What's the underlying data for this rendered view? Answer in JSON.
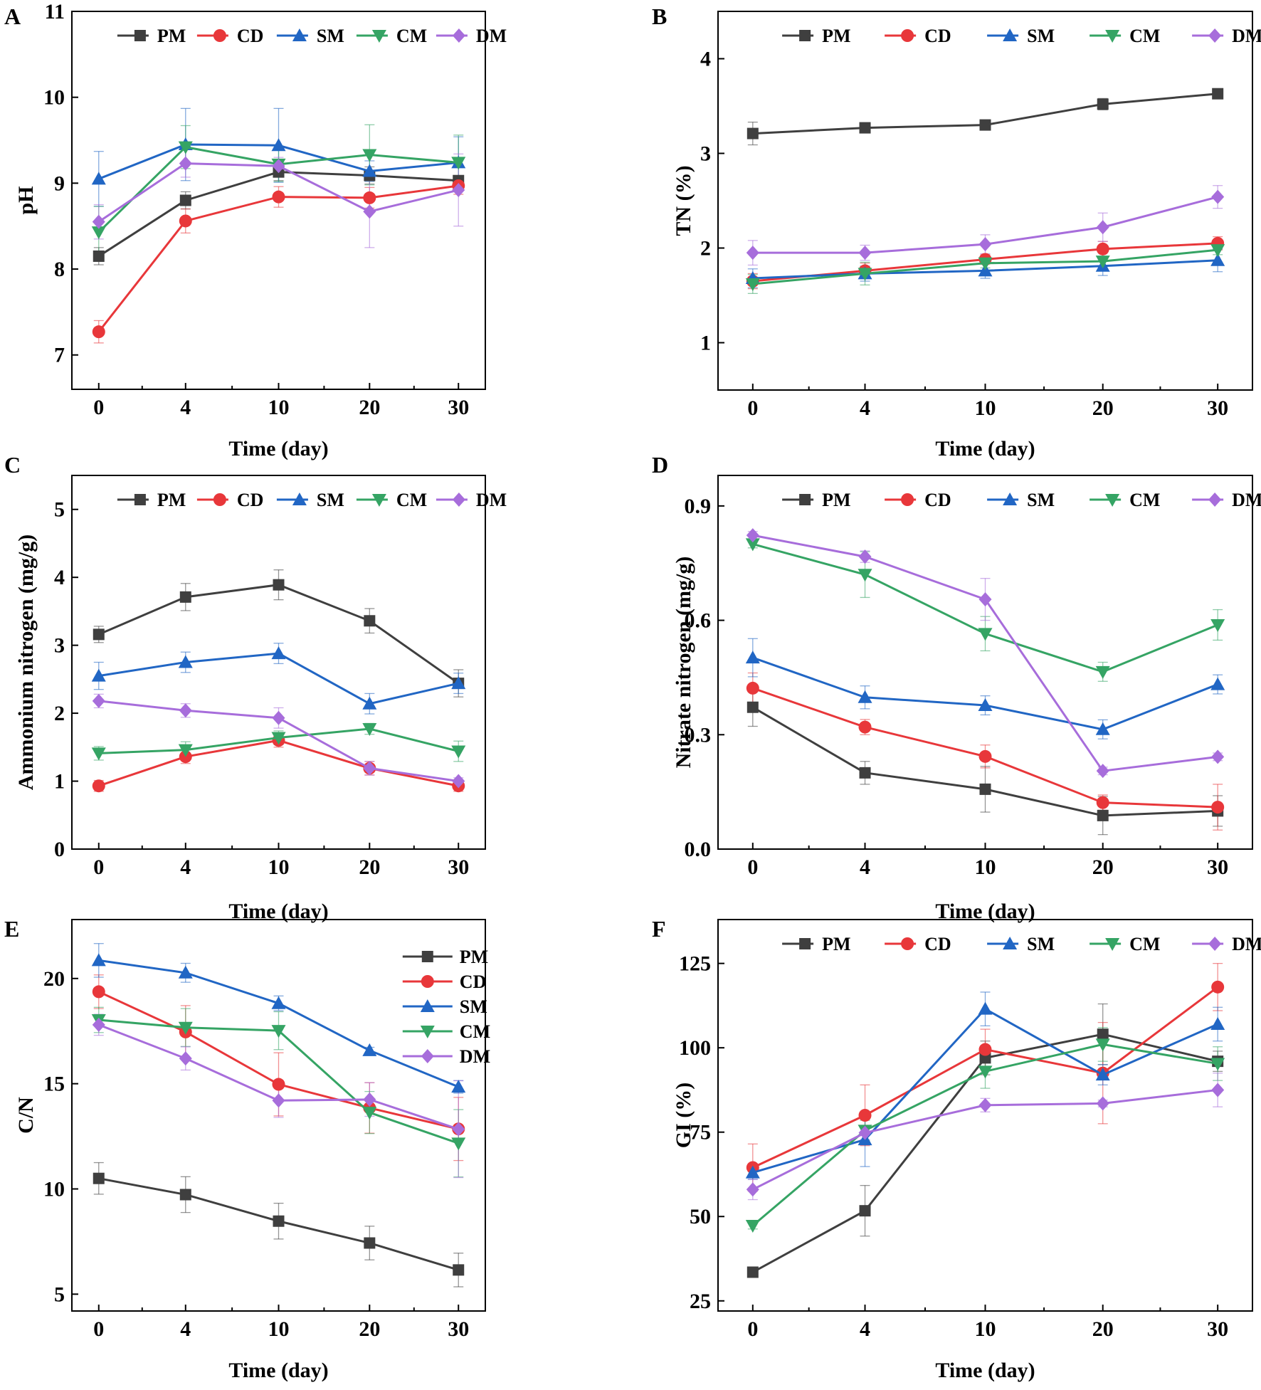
{
  "figure": {
    "series_colors": {
      "PM": "#3f3f3f",
      "CD": "#e8373a",
      "SM": "#2166c4",
      "CM": "#35a464",
      "DM": "#a76ddb"
    },
    "series_markers": {
      "PM": "square",
      "CD": "circle",
      "SM": "triangle-up",
      "CM": "triangle-down",
      "DM": "diamond"
    }
  },
  "chart_data": [
    {
      "id": "A",
      "letter": "A",
      "type": "line",
      "title": "",
      "xlabel": "Time (day)",
      "ylabel": "pH",
      "categories": [
        "0",
        "4",
        "10",
        "20",
        "30"
      ],
      "ylim": [
        6.6,
        11
      ],
      "yticks": [
        7,
        8,
        9,
        10,
        11
      ],
      "ytick_labels": [
        "7",
        "8",
        "9",
        "10",
        "11"
      ],
      "legend": "top-row",
      "series": [
        {
          "name": "PM",
          "values": [
            8.15,
            8.8,
            9.13,
            9.09,
            9.03
          ],
          "errors": [
            0.1,
            0.1,
            0.1,
            0.1,
            0.05
          ]
        },
        {
          "name": "CD",
          "values": [
            7.27,
            8.56,
            8.84,
            8.83,
            8.97
          ],
          "errors": [
            0.13,
            0.14,
            0.12,
            0.12,
            0.1
          ]
        },
        {
          "name": "SM",
          "values": [
            9.05,
            9.45,
            9.44,
            9.14,
            9.24
          ],
          "errors": [
            0.32,
            0.42,
            0.43,
            0.12,
            0.3
          ]
        },
        {
          "name": "CM",
          "values": [
            8.43,
            9.42,
            9.22,
            9.33,
            9.24
          ],
          "errors": [
            0.3,
            0.25,
            0.2,
            0.35,
            0.32
          ]
        },
        {
          "name": "DM",
          "values": [
            8.55,
            9.23,
            9.2,
            8.67,
            8.92
          ],
          "errors": [
            0.2,
            0.16,
            0.1,
            0.42,
            0.42
          ]
        }
      ]
    },
    {
      "id": "B",
      "letter": "B",
      "type": "line",
      "title": "",
      "xlabel": "Time (day)",
      "ylabel": "TN (%)",
      "categories": [
        "0",
        "4",
        "10",
        "20",
        "30"
      ],
      "ylim": [
        0.5,
        4.5
      ],
      "yticks": [
        1,
        2,
        3,
        4
      ],
      "ytick_labels": [
        "1",
        "2",
        "3",
        "4"
      ],
      "legend": "top-row",
      "series": [
        {
          "name": "PM",
          "values": [
            3.21,
            3.27,
            3.3,
            3.52,
            3.63
          ],
          "errors": [
            0.12,
            0.03,
            0.04,
            0.06,
            0.03
          ]
        },
        {
          "name": "CD",
          "values": [
            1.65,
            1.76,
            1.88,
            1.99,
            2.05
          ],
          "errors": [
            0.08,
            0.08,
            0.05,
            0.08,
            0.07
          ]
        },
        {
          "name": "SM",
          "values": [
            1.68,
            1.73,
            1.76,
            1.81,
            1.87
          ],
          "errors": [
            0.1,
            0.08,
            0.08,
            0.1,
            0.12
          ]
        },
        {
          "name": "CM",
          "values": [
            1.62,
            1.73,
            1.84,
            1.86,
            1.98
          ],
          "errors": [
            0.1,
            0.12,
            0.05,
            0.05,
            0.05
          ]
        },
        {
          "name": "DM",
          "values": [
            1.95,
            1.95,
            2.04,
            2.22,
            2.54
          ],
          "errors": [
            0.13,
            0.08,
            0.1,
            0.15,
            0.12
          ]
        }
      ]
    },
    {
      "id": "C",
      "letter": "C",
      "type": "line",
      "title": "",
      "xlabel": "Time (day)",
      "ylabel": "Ammonium nitrogen (mg/g)",
      "categories": [
        "0",
        "4",
        "10",
        "20",
        "30"
      ],
      "ylim": [
        0,
        5.5
      ],
      "yticks": [
        0,
        1,
        2,
        3,
        4,
        5
      ],
      "ytick_labels": [
        "0",
        "1",
        "2",
        "3",
        "4",
        "5"
      ],
      "legend": "top-row",
      "series": [
        {
          "name": "PM",
          "values": [
            3.16,
            3.71,
            3.89,
            3.36,
            2.44
          ],
          "errors": [
            0.12,
            0.2,
            0.22,
            0.18,
            0.2
          ]
        },
        {
          "name": "CD",
          "values": [
            0.93,
            1.36,
            1.6,
            1.19,
            0.93
          ],
          "errors": [
            0.08,
            0.1,
            0.1,
            0.1,
            0.08
          ]
        },
        {
          "name": "SM",
          "values": [
            2.55,
            2.75,
            2.88,
            2.14,
            2.44
          ],
          "errors": [
            0.2,
            0.15,
            0.15,
            0.15,
            0.15
          ]
        },
        {
          "name": "CM",
          "values": [
            1.41,
            1.46,
            1.64,
            1.77,
            1.44
          ],
          "errors": [
            0.1,
            0.12,
            0.1,
            0.08,
            0.15
          ]
        },
        {
          "name": "DM",
          "values": [
            2.18,
            2.04,
            1.93,
            1.19,
            1.0
          ],
          "errors": [
            0.1,
            0.1,
            0.15,
            0.1,
            0.05
          ]
        }
      ]
    },
    {
      "id": "D",
      "letter": "D",
      "type": "line",
      "title": "",
      "xlabel": "Time (day)",
      "ylabel": "Nitrate nitrogen (mg/g)",
      "categories": [
        "0",
        "4",
        "10",
        "20",
        "30"
      ],
      "ylim": [
        0,
        0.98
      ],
      "yticks": [
        0,
        0.3,
        0.6,
        0.9
      ],
      "ytick_labels": [
        "0.0",
        "0.3",
        "0.6",
        "0.9"
      ],
      "legend": "top-row",
      "series": [
        {
          "name": "PM",
          "values": [
            0.372,
            0.2,
            0.157,
            0.088,
            0.1
          ],
          "errors": [
            0.05,
            0.03,
            0.06,
            0.05,
            0.04
          ]
        },
        {
          "name": "CD",
          "values": [
            0.422,
            0.32,
            0.243,
            0.122,
            0.11
          ],
          "errors": [
            0.04,
            0.02,
            0.03,
            0.02,
            0.06
          ]
        },
        {
          "name": "SM",
          "values": [
            0.502,
            0.398,
            0.377,
            0.314,
            0.432
          ],
          "errors": [
            0.05,
            0.03,
            0.025,
            0.025,
            0.025
          ]
        },
        {
          "name": "CM",
          "values": [
            0.8,
            0.72,
            0.565,
            0.465,
            0.588
          ],
          "errors": [
            0.01,
            0.06,
            0.045,
            0.025,
            0.04
          ]
        },
        {
          "name": "DM",
          "values": [
            0.823,
            0.767,
            0.655,
            0.205,
            0.242
          ],
          "errors": [
            0.01,
            0.015,
            0.055,
            0.01,
            0.01
          ]
        }
      ]
    },
    {
      "id": "E",
      "letter": "E",
      "type": "line",
      "title": "",
      "xlabel": "Time (day)",
      "ylabel": "C/N",
      "categories": [
        "0",
        "4",
        "10",
        "20",
        "30"
      ],
      "ylim": [
        4.2,
        22.8
      ],
      "yticks": [
        5,
        10,
        15,
        20
      ],
      "ytick_labels": [
        "5",
        "10",
        "15",
        "20"
      ],
      "legend": "right-column",
      "series": [
        {
          "name": "PM",
          "values": [
            10.5,
            9.73,
            8.47,
            7.43,
            6.15
          ],
          "errors": [
            0.75,
            0.85,
            0.85,
            0.8,
            0.8
          ]
        },
        {
          "name": "CD",
          "values": [
            19.37,
            17.46,
            14.97,
            13.85,
            12.85
          ],
          "errors": [
            0.8,
            1.25,
            1.5,
            1.2,
            1.5
          ]
        },
        {
          "name": "SM",
          "values": [
            20.86,
            20.27,
            18.82,
            16.58,
            14.85
          ],
          "errors": [
            0.8,
            0.45,
            0.35,
            0.15,
            0.3
          ]
        },
        {
          "name": "CM",
          "values": [
            18.03,
            17.67,
            17.52,
            13.63,
            12.17
          ],
          "errors": [
            0.6,
            0.9,
            0.9,
            1.0,
            1.6
          ]
        },
        {
          "name": "DM",
          "values": [
            17.8,
            16.2,
            14.2,
            14.25,
            12.84
          ],
          "errors": [
            0.5,
            0.55,
            0.8,
            0.8,
            2.3
          ]
        }
      ]
    },
    {
      "id": "F",
      "letter": "F",
      "type": "line",
      "title": "",
      "xlabel": "Time (day)",
      "ylabel": "GI (%)",
      "categories": [
        "0",
        "4",
        "10",
        "20",
        "30"
      ],
      "ylim": [
        22,
        138
      ],
      "yticks": [
        25,
        50,
        75,
        100,
        125
      ],
      "ytick_labels": [
        "25",
        "50",
        "75",
        "100",
        "125"
      ],
      "legend": "top-row",
      "series": [
        {
          "name": "PM",
          "values": [
            33.5,
            51.7,
            97.0,
            104.0,
            96.0
          ],
          "errors": [
            1,
            7.5,
            5,
            9,
            3
          ]
        },
        {
          "name": "CD",
          "values": [
            64.5,
            80.0,
            99.5,
            92.5,
            118.0
          ],
          "errors": [
            7,
            9,
            6,
            15,
            7
          ]
        },
        {
          "name": "SM",
          "values": [
            63.0,
            72.8,
            111.5,
            92.0,
            107.0
          ],
          "errors": [
            2,
            8,
            5,
            3,
            5
          ]
        },
        {
          "name": "CM",
          "values": [
            47.3,
            75.5,
            93.0,
            101.0,
            95.3
          ],
          "errors": [
            1,
            3,
            5,
            5,
            5
          ]
        },
        {
          "name": "DM",
          "values": [
            58.0,
            74.8,
            83.0,
            83.5,
            87.5
          ],
          "errors": [
            3,
            2,
            2,
            1,
            5
          ]
        }
      ]
    }
  ]
}
